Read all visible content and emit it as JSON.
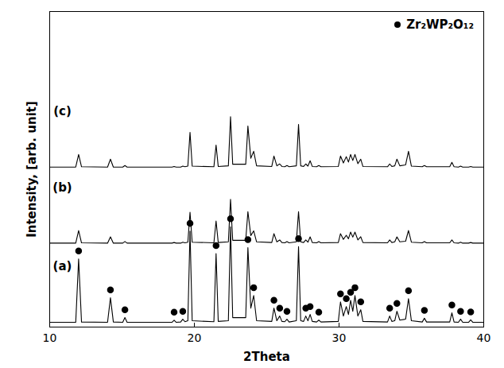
{
  "chart_data": {
    "type": "line",
    "x_label": "2Theta",
    "y_label": "Intensity, [arb. unit]",
    "xlim": [
      10,
      40
    ],
    "xticks": [
      10,
      20,
      30,
      40
    ],
    "ylim": [
      0,
      100
    ],
    "yticks": [],
    "tick_labels": "x",
    "grid": false,
    "legend": "upper right",
    "x": [
      10.0,
      11.8,
      12.0,
      12.2,
      14.0,
      14.2,
      14.4,
      15.05,
      15.2,
      15.35,
      18.45,
      18.6,
      18.75,
      19.05,
      19.2,
      19.35,
      19.55,
      19.7,
      19.85,
      21.35,
      21.5,
      21.65,
      22.35,
      22.5,
      22.65,
      23.55,
      23.7,
      23.9,
      24.1,
      24.3,
      25.35,
      25.5,
      25.7,
      25.9,
      26.05,
      26.25,
      26.4,
      26.55,
      27.05,
      27.2,
      27.35,
      27.55,
      27.7,
      27.85,
      28.0,
      28.15,
      28.45,
      28.6,
      28.75,
      29.95,
      30.1,
      30.3,
      30.5,
      30.65,
      30.8,
      30.95,
      31.1,
      31.3,
      31.5,
      31.65,
      33.35,
      33.5,
      33.65,
      33.85,
      34.0,
      34.2,
      34.6,
      34.8,
      35.0,
      35.75,
      35.9,
      36.05,
      37.65,
      37.8,
      37.95,
      38.25,
      38.4,
      38.55,
      38.95,
      39.1,
      39.25,
      40.0
    ],
    "series": [
      {
        "name": "(a)",
        "color": "#000000",
        "values": [
          1.5,
          1.5,
          21.6,
          1.6,
          1.5,
          9.3,
          1.6,
          1.5,
          3.0,
          1.5,
          1.5,
          2.2,
          1.5,
          1.6,
          2.5,
          1.7,
          2.0,
          30.4,
          2.0,
          1.7,
          23.3,
          1.8,
          2.0,
          31.8,
          3.0,
          3.0,
          25.2,
          6.0,
          10.0,
          2.0,
          1.8,
          6.0,
          2.0,
          3.5,
          1.8,
          1.7,
          2.5,
          1.6,
          2.0,
          25.5,
          2.0,
          1.8,
          3.5,
          2.0,
          4.0,
          1.8,
          1.6,
          2.2,
          1.6,
          1.8,
          8.0,
          3.5,
          6.5,
          4.0,
          8.5,
          5.0,
          10.0,
          3.5,
          5.5,
          1.8,
          1.6,
          3.5,
          1.8,
          2.0,
          5.0,
          2.2,
          2.5,
          9.0,
          2.0,
          1.6,
          2.8,
          1.6,
          1.6,
          4.5,
          1.6,
          1.5,
          2.5,
          1.5,
          1.5,
          2.3,
          1.5,
          1.5
        ]
      },
      {
        "name": "(b)",
        "color": "#000000",
        "values": [
          26.6,
          26.6,
          30.6,
          26.7,
          26.6,
          28.6,
          26.6,
          26.6,
          27.1,
          26.6,
          26.6,
          26.8,
          26.6,
          26.6,
          26.9,
          26.7,
          26.9,
          36.4,
          26.9,
          26.7,
          33.6,
          26.8,
          27.0,
          40.5,
          27.5,
          27.5,
          36.6,
          29.0,
          30.5,
          27.0,
          26.8,
          29.6,
          27.0,
          27.6,
          26.8,
          26.7,
          27.1,
          26.7,
          27.0,
          36.6,
          27.0,
          26.8,
          27.6,
          26.9,
          28.6,
          26.8,
          26.7,
          27.1,
          26.7,
          26.8,
          29.6,
          27.8,
          29.1,
          28.0,
          30.1,
          28.5,
          30.1,
          27.6,
          28.6,
          26.8,
          26.7,
          27.6,
          26.8,
          27.0,
          28.6,
          27.0,
          27.2,
          30.6,
          26.9,
          26.7,
          27.1,
          26.7,
          26.7,
          27.6,
          26.7,
          26.6,
          26.9,
          26.6,
          26.6,
          26.8,
          26.6,
          26.6
        ]
      },
      {
        "name": "(c)",
        "color": "#000000",
        "values": [
          50.7,
          50.7,
          54.7,
          50.8,
          50.7,
          53.2,
          50.7,
          50.7,
          51.2,
          50.7,
          50.7,
          50.9,
          50.7,
          50.7,
          51.0,
          50.8,
          51.0,
          61.7,
          51.0,
          50.8,
          57.7,
          50.9,
          51.1,
          66.7,
          51.6,
          51.6,
          63.7,
          53.5,
          55.7,
          51.1,
          50.9,
          54.2,
          51.1,
          51.7,
          50.9,
          50.8,
          51.2,
          50.8,
          51.1,
          64.2,
          51.1,
          50.9,
          51.7,
          51.0,
          52.7,
          50.9,
          50.8,
          51.2,
          50.8,
          50.9,
          54.2,
          52.0,
          54.0,
          52.3,
          54.7,
          52.8,
          54.7,
          51.8,
          53.2,
          50.9,
          50.8,
          51.7,
          50.9,
          51.1,
          53.2,
          51.1,
          51.4,
          55.7,
          51.0,
          50.8,
          51.2,
          50.8,
          50.8,
          52.2,
          50.8,
          50.7,
          51.0,
          50.7,
          50.7,
          50.9,
          50.7,
          50.7
        ]
      }
    ],
    "peak_markers": {
      "name": "Zr₂WP₂O₁₂",
      "type": "scatter",
      "marker": "circle",
      "color": "#000000",
      "x": [
        12.0,
        14.2,
        15.2,
        18.6,
        19.2,
        19.7,
        21.5,
        22.5,
        23.7,
        24.1,
        25.5,
        25.9,
        26.4,
        27.2,
        27.7,
        28.0,
        28.6,
        30.1,
        30.5,
        30.8,
        31.1,
        31.5,
        33.5,
        34.0,
        34.8,
        35.9,
        37.8,
        38.4,
        39.1
      ],
      "values": [
        24.1,
        11.8,
        5.5,
        4.7,
        5.0,
        32.9,
        25.8,
        34.3,
        27.7,
        12.5,
        8.5,
        6.0,
        5.0,
        28.0,
        6.0,
        6.5,
        4.7,
        10.5,
        9.0,
        11.0,
        12.5,
        8.0,
        6.0,
        7.5,
        11.5,
        5.3,
        7.0,
        5.0,
        4.8
      ]
    }
  }
}
